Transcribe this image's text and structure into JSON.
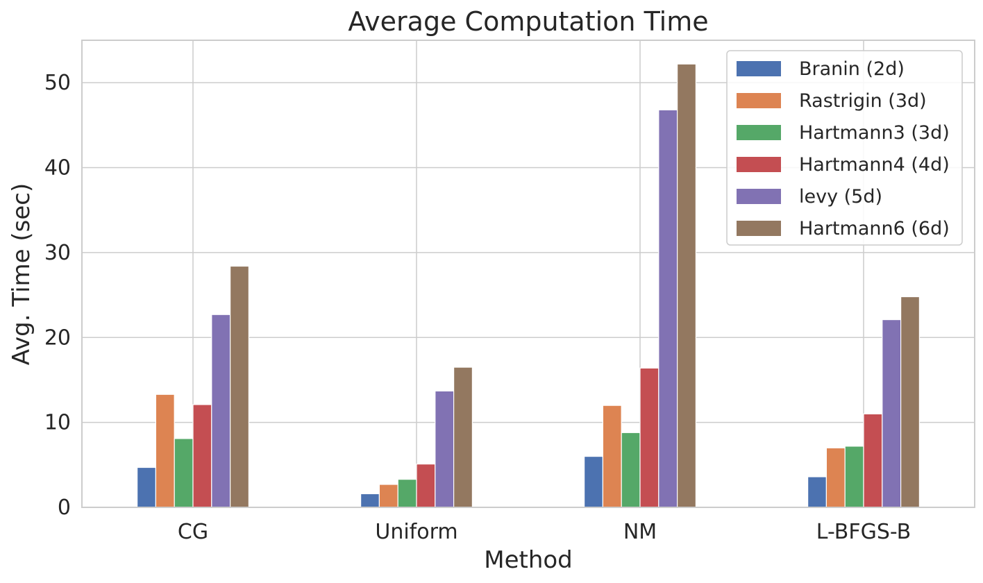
{
  "chart_data": {
    "type": "bar",
    "title": "Average Computation Time",
    "xlabel": "Method",
    "ylabel": "Avg. Time (sec)",
    "categories": [
      "CG",
      "Uniform",
      "NM",
      "L-BFGS-B"
    ],
    "ylim": [
      0,
      55
    ],
    "yticks": [
      0,
      10,
      20,
      30,
      40,
      50
    ],
    "grid": true,
    "legend_position": "top-right",
    "series": [
      {
        "name": "Branin (2d)",
        "color": "#4c72b0",
        "values": [
          4.7,
          1.6,
          6.0,
          3.6
        ]
      },
      {
        "name": "Rastrigin (3d)",
        "color": "#dd8452",
        "values": [
          13.3,
          2.7,
          12.0,
          7.0
        ]
      },
      {
        "name": "Hartmann3 (3d)",
        "color": "#55a868",
        "values": [
          8.1,
          3.3,
          8.8,
          7.2
        ]
      },
      {
        "name": "Hartmann4 (4d)",
        "color": "#c44e52",
        "values": [
          12.1,
          5.1,
          16.4,
          11.0
        ]
      },
      {
        "name": "levy (5d)",
        "color": "#8172b3",
        "values": [
          22.7,
          13.7,
          46.8,
          22.1
        ]
      },
      {
        "name": "Hartmann6 (6d)",
        "color": "#937860",
        "values": [
          28.4,
          16.5,
          52.2,
          24.8
        ]
      }
    ]
  }
}
